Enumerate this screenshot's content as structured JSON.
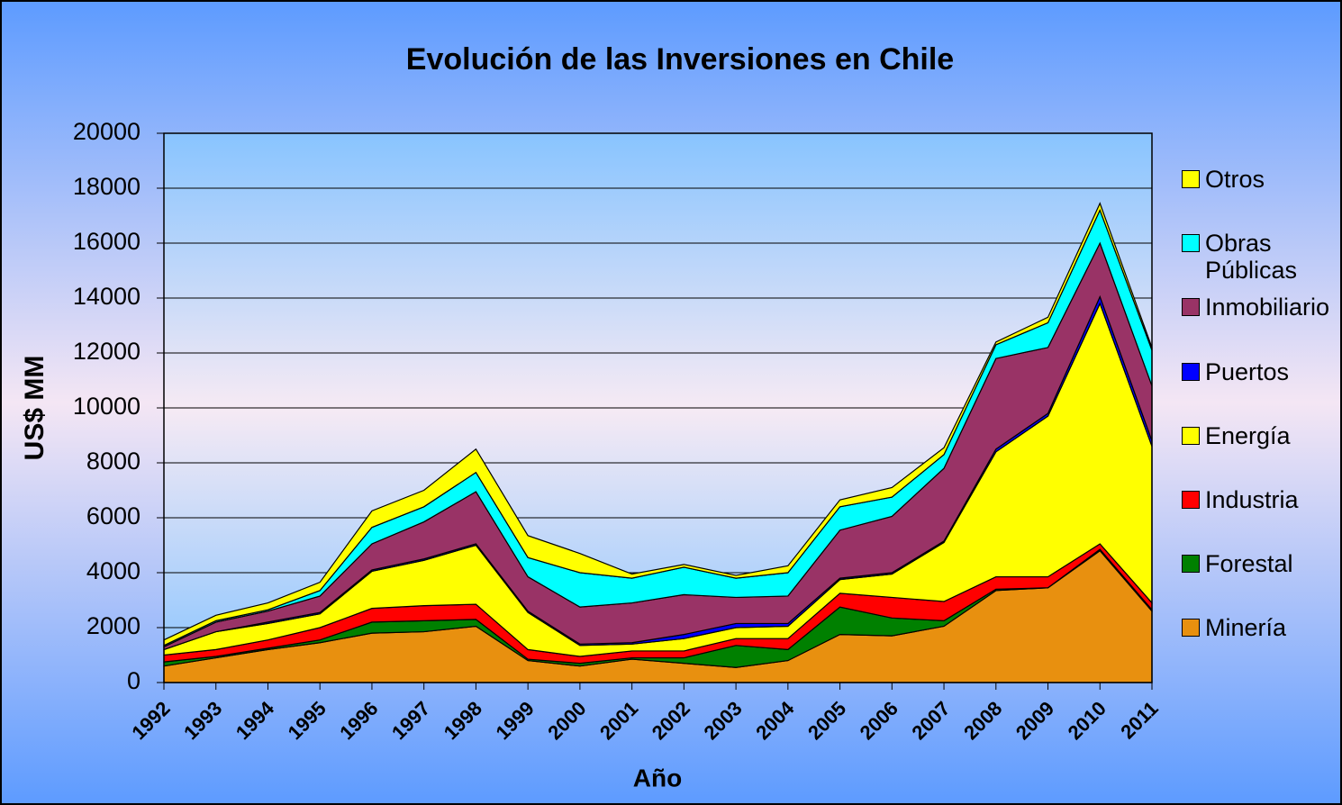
{
  "chart_data": {
    "type": "stacked-area",
    "title": "Evolución de las Inversiones en Chile",
    "xlabel": "Año",
    "ylabel": "US$ MM",
    "categories": [
      "1992",
      "1993",
      "1994",
      "1995",
      "1996",
      "1997",
      "1998",
      "1999",
      "2000",
      "2001",
      "2002",
      "2003",
      "2004",
      "2005",
      "2006",
      "2007",
      "2008",
      "2009",
      "2010",
      "2011"
    ],
    "series": [
      {
        "name": "Minería",
        "color": "#e8900f",
        "values": [
          600,
          900,
          1200,
          1450,
          1800,
          1850,
          2050,
          800,
          600,
          850,
          700,
          550,
          800,
          1750,
          1700,
          2050,
          3350,
          3450,
          4800,
          2600
        ]
      },
      {
        "name": "Forestal",
        "color": "#008000",
        "values": [
          150,
          50,
          50,
          100,
          400,
          400,
          250,
          50,
          100,
          50,
          200,
          800,
          400,
          1000,
          650,
          200,
          50,
          0,
          50,
          50
        ]
      },
      {
        "name": "Industria",
        "color": "#ff0000",
        "values": [
          250,
          250,
          300,
          450,
          500,
          550,
          550,
          350,
          250,
          250,
          250,
          250,
          400,
          500,
          750,
          700,
          450,
          400,
          200,
          250
        ]
      },
      {
        "name": "Energía",
        "color": "#ffff00",
        "values": [
          200,
          650,
          600,
          500,
          1350,
          1650,
          2150,
          1350,
          400,
          250,
          450,
          400,
          450,
          500,
          850,
          2150,
          4550,
          5850,
          8750,
          5700
        ]
      },
      {
        "name": "Puertos",
        "color": "#0000ff",
        "values": [
          0,
          0,
          50,
          50,
          50,
          50,
          50,
          50,
          50,
          50,
          150,
          150,
          100,
          50,
          50,
          50,
          100,
          100,
          250,
          200
        ]
      },
      {
        "name": "Inmobiliario",
        "color": "#993366",
        "values": [
          100,
          350,
          400,
          600,
          950,
          1350,
          1900,
          1250,
          1350,
          1450,
          1450,
          950,
          1000,
          1750,
          2050,
          2650,
          3300,
          2400,
          1950,
          2000
        ]
      },
      {
        "name": "Obras Públicas",
        "color": "#00ffff",
        "values": [
          50,
          50,
          50,
          200,
          600,
          550,
          700,
          700,
          1250,
          900,
          1000,
          700,
          850,
          850,
          700,
          500,
          500,
          900,
          1200,
          1300
        ]
      },
      {
        "name": "Otros",
        "color": "#ffff00",
        "values": [
          200,
          200,
          250,
          300,
          600,
          600,
          850,
          800,
          700,
          150,
          100,
          100,
          250,
          250,
          350,
          250,
          100,
          200,
          250,
          100
        ]
      }
    ],
    "ylim": [
      0,
      20000
    ],
    "yticks": [
      0,
      2000,
      4000,
      6000,
      8000,
      10000,
      12000,
      14000,
      16000,
      18000,
      20000
    ],
    "grid": true,
    "legend": "right"
  }
}
